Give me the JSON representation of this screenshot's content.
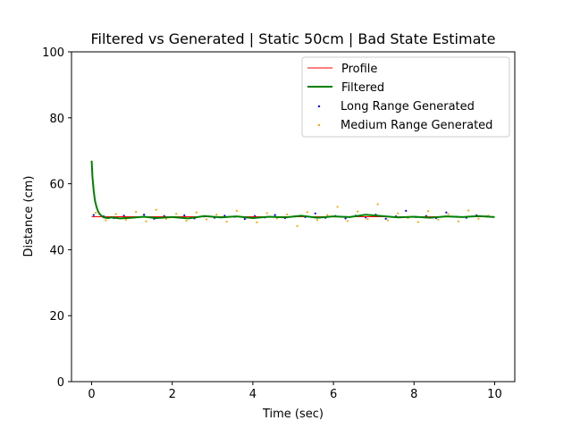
{
  "chart_data": {
    "type": "line",
    "title": "Filtered vs Generated | Static 50cm | Bad State Estimate",
    "xlabel": "Time (sec)",
    "ylabel": "Distance (cm)",
    "xlim": [
      -0.5,
      10.5
    ],
    "ylim": [
      0,
      100
    ],
    "x_ticks": [
      "0",
      "2",
      "4",
      "6",
      "8",
      "10"
    ],
    "y_ticks": [
      "0",
      "20",
      "40",
      "60",
      "80",
      "100"
    ],
    "grid": false,
    "legend": {
      "placement": "top-right",
      "entries": [
        "Profile",
        "Filtered",
        "Long Range Generated",
        "Medium Range Generated"
      ]
    },
    "colors": {
      "profile": "#ff0000",
      "filtered": "#008000",
      "long_range": "#0000ff",
      "medium_range": "#ffa500"
    },
    "series": [
      {
        "name": "Profile",
        "style": "line",
        "x": [
          0,
          10
        ],
        "y": [
          50,
          50
        ]
      },
      {
        "name": "Filtered",
        "style": "line",
        "x": [
          0,
          0.02,
          0.05,
          0.08,
          0.12,
          0.16,
          0.2,
          0.25,
          0.3,
          0.4,
          0.5,
          0.7,
          1.0,
          1.3,
          1.6,
          2.0,
          2.4,
          2.8,
          3.2,
          3.6,
          4.0,
          4.4,
          4.8,
          5.2,
          5.6,
          6.0,
          6.4,
          6.8,
          7.2,
          7.6,
          8.0,
          8.4,
          8.8,
          9.2,
          9.6,
          10.0
        ],
        "y": [
          67,
          62,
          58,
          55,
          53,
          51.6,
          50.8,
          50.2,
          49.8,
          49.6,
          49.8,
          49.5,
          49.7,
          50.0,
          49.6,
          49.9,
          49.5,
          50.2,
          49.8,
          50.1,
          49.6,
          50.0,
          49.8,
          50.3,
          49.7,
          50.1,
          49.9,
          50.6,
          50.2,
          49.8,
          50.0,
          49.7,
          50.1,
          49.9,
          50.2,
          49.9
        ]
      },
      {
        "name": "Long Range Generated",
        "style": "scatter",
        "x": [
          0.05,
          0.3,
          0.55,
          0.8,
          1.05,
          1.3,
          1.55,
          1.8,
          2.05,
          2.3,
          2.55,
          2.8,
          3.05,
          3.3,
          3.55,
          3.8,
          4.05,
          4.3,
          4.55,
          4.8,
          5.05,
          5.3,
          5.55,
          5.8,
          6.05,
          6.3,
          6.55,
          6.8,
          7.05,
          7.3,
          7.55,
          7.8,
          8.05,
          8.3,
          8.55,
          8.8,
          9.05,
          9.3,
          9.55,
          9.8
        ],
        "y": [
          50.5,
          50.1,
          49.6,
          50.3,
          49.8,
          50.6,
          49.4,
          50.2,
          49.9,
          50.4,
          49.5,
          50.1,
          49.7,
          50.3,
          50.0,
          49.3,
          50.2,
          49.8,
          50.5,
          49.6,
          50.1,
          49.9,
          51.0,
          49.7,
          50.2,
          49.5,
          50.3,
          49.8,
          50.6,
          49.4,
          50.1,
          51.8,
          49.9,
          50.2,
          49.6,
          51.3,
          50.0,
          49.7,
          50.4,
          50.1
        ]
      },
      {
        "name": "Medium Range Generated",
        "style": "scatter",
        "x": [
          0.1,
          0.35,
          0.6,
          0.85,
          1.1,
          1.35,
          1.6,
          1.85,
          2.1,
          2.35,
          2.6,
          2.85,
          3.1,
          3.35,
          3.6,
          3.85,
          4.1,
          4.35,
          4.6,
          4.85,
          5.1,
          5.35,
          5.6,
          5.85,
          6.1,
          6.35,
          6.6,
          6.85,
          7.1,
          7.35,
          7.6,
          7.85,
          8.1,
          8.35,
          8.6,
          8.85,
          9.1,
          9.35,
          9.6,
          9.85
        ],
        "y": [
          51.2,
          48.9,
          50.8,
          49.1,
          51.5,
          48.6,
          52.1,
          49.4,
          50.9,
          48.8,
          51.3,
          49.2,
          50.6,
          48.5,
          51.8,
          49.7,
          48.3,
          51.1,
          49.5,
          50.7,
          47.2,
          51.4,
          49.0,
          50.5,
          53.0,
          48.7,
          51.6,
          49.3,
          53.8,
          48.9,
          51.0,
          49.6,
          48.4,
          51.7,
          49.1,
          50.8,
          48.6,
          51.9,
          49.4,
          50.3
        ]
      }
    ]
  }
}
